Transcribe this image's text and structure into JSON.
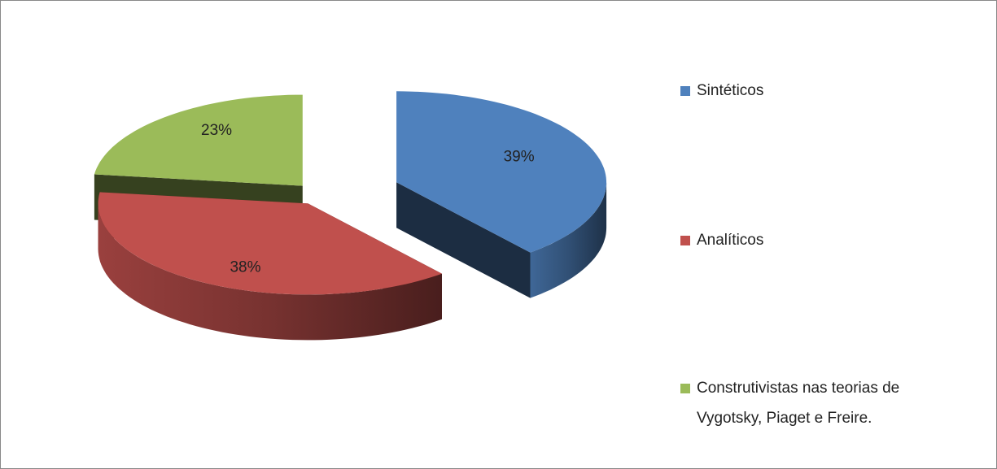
{
  "chart_data": {
    "type": "pie",
    "categories": [
      "Sintéticos",
      "Analíticos",
      "Construtivistas nas teorias de Vygotsky, Piaget e Freire."
    ],
    "values": [
      39,
      38,
      23
    ],
    "value_labels": [
      "39%",
      "38%",
      "23%"
    ],
    "colors": [
      "#4f81bd",
      "#c0504d",
      "#9bbb59"
    ],
    "legend": "right"
  }
}
